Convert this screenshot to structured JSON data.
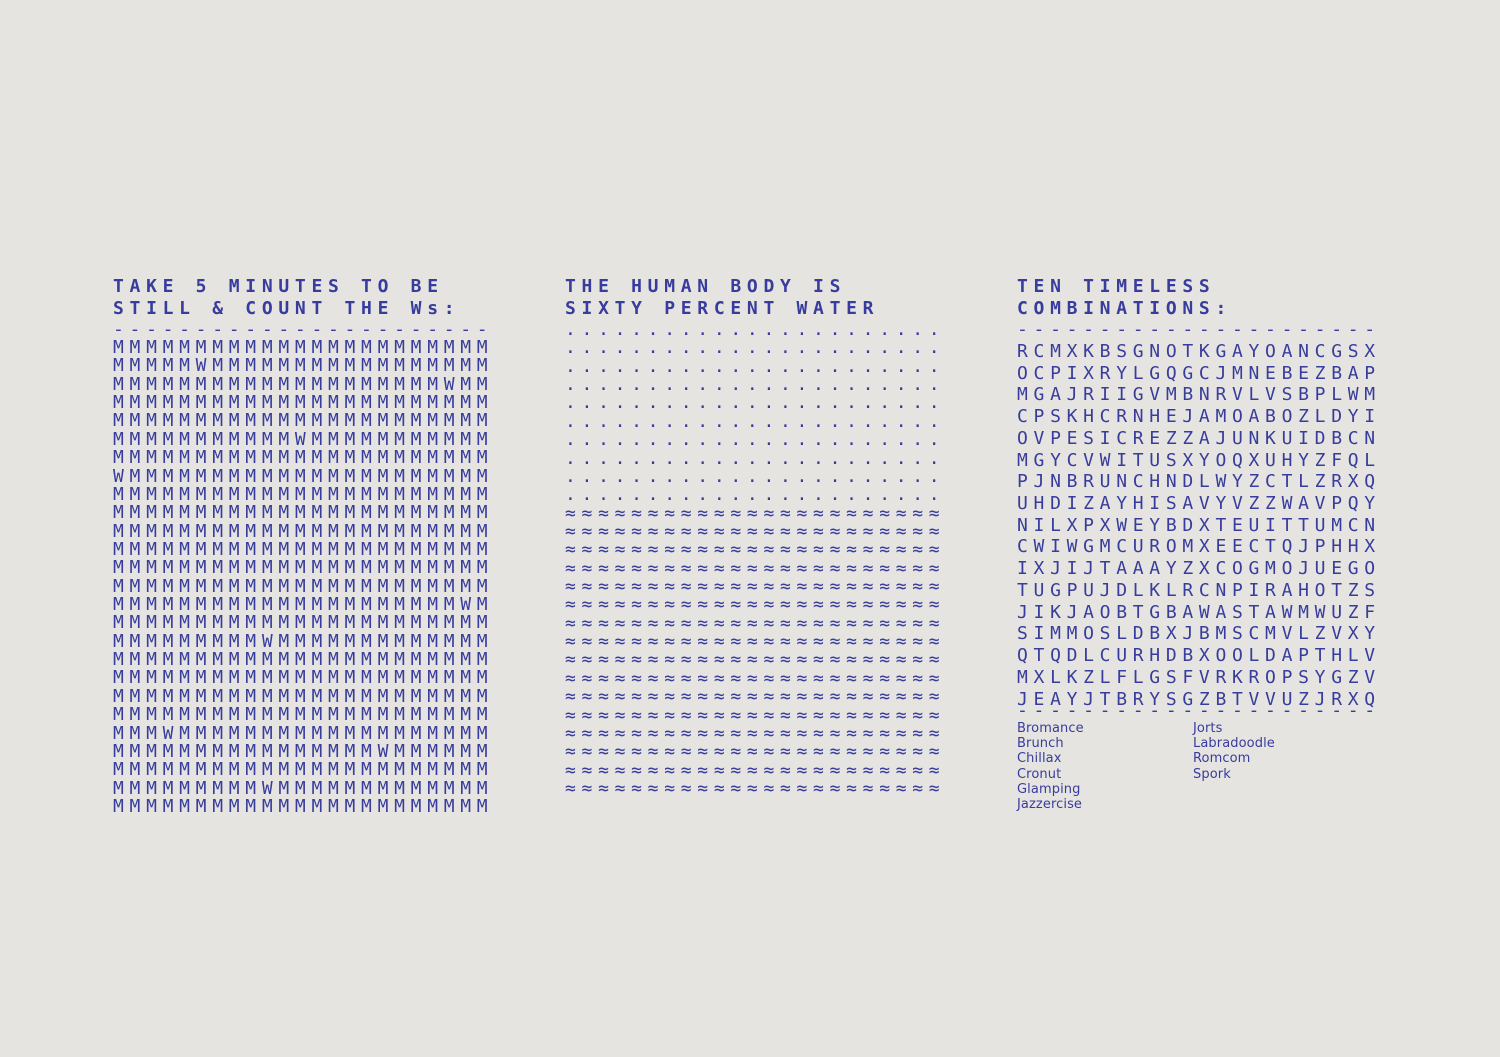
{
  "colors": {
    "background": "#e5e4e1",
    "ink": "#383c9c"
  },
  "left_column": {
    "title_lines": [
      "TAKE 5 MINUTES TO BE",
      "STILL & COUNT THE Ws:"
    ],
    "divider": "-----------------------",
    "rows": [
      "MMMMMMMMMMMMMMMMMMMMMMM",
      "MMMMMWMMMMMMMMMMMMMMMMM",
      "MMMMMMMMMMMMMMMMMMMMWMM",
      "MMMMMMMMMMMMMMMMMMMMMMM",
      "MMMMMMMMMMMMMMMMMMMMMMM",
      "MMMMMMMMMMMWMMMMMMMMMMM",
      "MMMMMMMMMMMMMMMMMMMMMMM",
      "WMMMMMMMMMMMMMMMMMMMMMM",
      "MMMMMMMMMMMMMMMMMMMMMMM",
      "MMMMMMMMMMMMMMMMMMMMMMM",
      "MMMMMMMMMMMMMMMMMMMMMMM",
      "MMMMMMMMMMMMMMMMMMMMMMM",
      "MMMMMMMMMMMMMMMMMMMMMMM",
      "MMMMMMMMMMMMMMMMMMMMMMM",
      "MMMMMMMMMMMMMMMMMMMMMWM",
      "MMMMMMMMMMMMMMMMMMMMMMM",
      "MMMMMMMMMWMMMMMMMMMMMMM",
      "MMMMMMMMMMMMMMMMMMMMMMM",
      "MMMMMMMMMMMMMMMMMMMMMMM",
      "MMMMMMMMMMMMMMMMMMMMMMM",
      "MMMMMMMMMMMMMMMMMMMMMMM",
      "MMMWMMMMMMMMMMMMMMMMMMM",
      "MMMMMMMMMMMMMMMMWMMMMMM",
      "MMMMMMMMMMMMMMMMMMMMMMM",
      "MMMMMMMMMWMMMMMMMMMMMMM",
      "MMMMMMMMMMMMMMMMMMMMMMM"
    ]
  },
  "middle_column": {
    "title_lines": [
      "THE HUMAN BODY IS",
      "SIXTY PERCENT WATER"
    ],
    "dot_rows": [
      ".......................",
      ".......................",
      ".......................",
      ".......................",
      ".......................",
      ".......................",
      ".......................",
      ".......................",
      ".......................",
      "......................."
    ],
    "wave_rows": [
      "≈≈≈≈≈≈≈≈≈≈≈≈≈≈≈≈≈≈≈≈≈≈≈",
      "≈≈≈≈≈≈≈≈≈≈≈≈≈≈≈≈≈≈≈≈≈≈≈",
      "≈≈≈≈≈≈≈≈≈≈≈≈≈≈≈≈≈≈≈≈≈≈≈",
      "≈≈≈≈≈≈≈≈≈≈≈≈≈≈≈≈≈≈≈≈≈≈≈",
      "≈≈≈≈≈≈≈≈≈≈≈≈≈≈≈≈≈≈≈≈≈≈≈",
      "≈≈≈≈≈≈≈≈≈≈≈≈≈≈≈≈≈≈≈≈≈≈≈",
      "≈≈≈≈≈≈≈≈≈≈≈≈≈≈≈≈≈≈≈≈≈≈≈",
      "≈≈≈≈≈≈≈≈≈≈≈≈≈≈≈≈≈≈≈≈≈≈≈",
      "≈≈≈≈≈≈≈≈≈≈≈≈≈≈≈≈≈≈≈≈≈≈≈",
      "≈≈≈≈≈≈≈≈≈≈≈≈≈≈≈≈≈≈≈≈≈≈≈",
      "≈≈≈≈≈≈≈≈≈≈≈≈≈≈≈≈≈≈≈≈≈≈≈",
      "≈≈≈≈≈≈≈≈≈≈≈≈≈≈≈≈≈≈≈≈≈≈≈",
      "≈≈≈≈≈≈≈≈≈≈≈≈≈≈≈≈≈≈≈≈≈≈≈",
      "≈≈≈≈≈≈≈≈≈≈≈≈≈≈≈≈≈≈≈≈≈≈≈",
      "≈≈≈≈≈≈≈≈≈≈≈≈≈≈≈≈≈≈≈≈≈≈≈",
      "≈≈≈≈≈≈≈≈≈≈≈≈≈≈≈≈≈≈≈≈≈≈≈"
    ]
  },
  "right_column": {
    "title_lines": [
      "TEN TIMELESS",
      "COMBINATIONS:"
    ],
    "divider_top": "----------------------",
    "divider_bottom": "----------------------",
    "grid_rows": [
      "RCMXKBSGNOTKGAYOANCGSX",
      "OCPIXRYLGQGCJMNEBEZBAP",
      "MGAJRIIGVMBNRVLVSBPLWM",
      "CPSKHCRNHEJAMOABOZLDYI",
      "OVPESICREZZAJUNKUIDBCN",
      "MGYCVWITUSXYOQXUHYZFQL",
      "PJNBRUNCHNDLWYZCTLZRXQ",
      "UHDIZAYHISAVYVZZWAVPQY",
      "NILXPXWEYBDXTEUITTUMCN",
      "CWIWGMCUROMXEECTQJPHHX",
      "IXJIJTAAAYZXCOGMOJUEGO",
      "TUGPUJDLKLRCNPIRAHOTZS",
      "JIKJAOBTGBAWASTAWMWUZF",
      "SIMMOSLDBXJBMSCMVLZVXY",
      "QTQDLCURHDBXOOLDAPTHLV",
      "MXLKZLFLGSFVRKROPSYGZV",
      "JEAYJTBRYSGZBTVVUZJRXQ"
    ],
    "words_col1": [
      "Bromance",
      "Brunch",
      "Chillax",
      "Cronut",
      "Glamping",
      "Jazzercise"
    ],
    "words_col2": [
      "Jorts",
      "Labradoodle",
      "Romcom",
      "Spork"
    ]
  }
}
